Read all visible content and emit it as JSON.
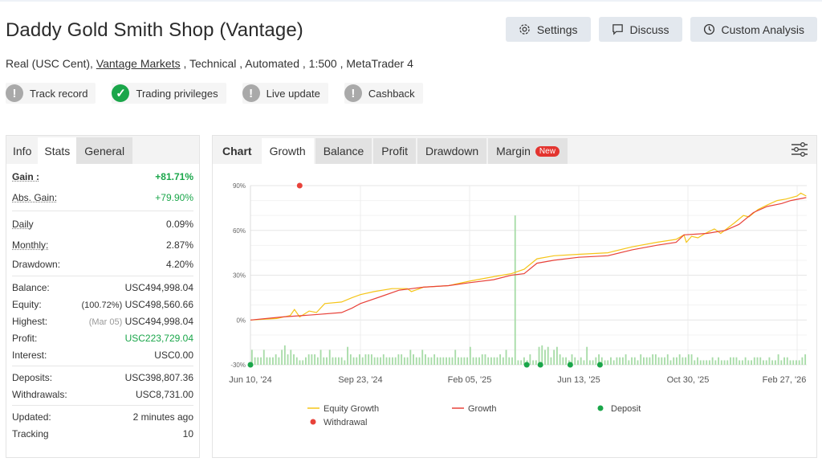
{
  "header": {
    "title": "Daddy Gold Smith Shop (Vantage)",
    "account_type": "Real (USC Cent),",
    "broker": "Vantage Markets",
    "details": " , Technical , Automated , 1:500 , MetaTrader 4",
    "badges": [
      {
        "label": "Track record",
        "icon": "exclamation-icon",
        "status": "grey"
      },
      {
        "label": "Trading privileges",
        "icon": "check-icon",
        "status": "green"
      },
      {
        "label": "Live update",
        "icon": "exclamation-icon",
        "status": "grey"
      },
      {
        "label": "Cashback",
        "icon": "exclamation-icon",
        "status": "grey"
      }
    ],
    "buttons": [
      {
        "label": "Settings",
        "icon": "gear-icon"
      },
      {
        "label": "Discuss",
        "icon": "chat-icon"
      },
      {
        "label": "Custom Analysis",
        "icon": "clock-icon"
      }
    ]
  },
  "stats": {
    "tabs": [
      "Info",
      "Stats",
      "General"
    ],
    "active_tab": "Stats",
    "gain": {
      "label": "Gain :",
      "value": "+81.71%"
    },
    "abs_gain": {
      "label": "Abs. Gain:",
      "value": "+79.90%"
    },
    "daily": {
      "label": "Daily",
      "value": "0.09%"
    },
    "monthly": {
      "label": "Monthly:",
      "value": "2.87%"
    },
    "drawdown": {
      "label": "Drawdown:",
      "value": "4.20%"
    },
    "balance": {
      "label": "Balance:",
      "value": "USC494,998.04"
    },
    "equity": {
      "label": "Equity:",
      "note": "(100.72%)",
      "value": "USC498,560.66"
    },
    "highest": {
      "label": "Highest:",
      "note": "(Mar 05)",
      "value": "USC494,998.04"
    },
    "profit": {
      "label": "Profit:",
      "value": "USC223,729.04"
    },
    "interest": {
      "label": "Interest:",
      "value": "USC0.00"
    },
    "deposits": {
      "label": "Deposits:",
      "value": "USC398,807.36"
    },
    "withdrawals": {
      "label": "Withdrawals:",
      "value": "USC8,731.00"
    },
    "updated": {
      "label": "Updated:",
      "value": "2 minutes ago"
    },
    "tracking": {
      "label": "Tracking",
      "value": "10"
    }
  },
  "chart_tabs": {
    "items": [
      "Chart",
      "Growth",
      "Balance",
      "Profit",
      "Drawdown",
      "Margin"
    ],
    "active": "Growth",
    "new_badge": "New"
  },
  "chart_data": {
    "type": "line",
    "ylim": [
      -30,
      90
    ],
    "yticks": [
      "90%",
      "60%",
      "30%",
      "0%",
      "-30%"
    ],
    "ytick_values": [
      90,
      60,
      30,
      0,
      -30
    ],
    "xticks": [
      "Jun 10, '24",
      "Sep 23, '24",
      "Feb 05, '25",
      "Jun 13, '25",
      "Oct 30, '25",
      "Feb 27, '26"
    ],
    "xtick_dates": [
      "2024-06-10",
      "2024-09-23",
      "2025-02-05",
      "2025-06-13",
      "2025-10-30",
      "2026-02-27"
    ],
    "grid": true,
    "legend_position": "bottom",
    "colors": {
      "equity": "#f5c518",
      "growth": "#e8423a",
      "deposit": "#1aa64a",
      "withdrawal": "#e8423a",
      "bars": "#a8dca8"
    },
    "series": [
      {
        "name": "Equity Growth",
        "points": [
          [
            "2024-06-10",
            0
          ],
          [
            "2024-07-05",
            1
          ],
          [
            "2024-07-18",
            3
          ],
          [
            "2024-07-22",
            7
          ],
          [
            "2024-07-27",
            2
          ],
          [
            "2024-08-05",
            6
          ],
          [
            "2024-08-12",
            5
          ],
          [
            "2024-08-20",
            11
          ],
          [
            "2024-09-05",
            12
          ],
          [
            "2024-09-15",
            15
          ],
          [
            "2024-09-23",
            17
          ],
          [
            "2024-10-10",
            19
          ],
          [
            "2024-11-01",
            21
          ],
          [
            "2024-11-20",
            21
          ],
          [
            "2024-11-25",
            19
          ],
          [
            "2024-12-10",
            22
          ],
          [
            "2025-01-10",
            23
          ],
          [
            "2025-02-05",
            26
          ],
          [
            "2025-03-05",
            29
          ],
          [
            "2025-03-26",
            31
          ],
          [
            "2025-04-10",
            34
          ],
          [
            "2025-04-25",
            41
          ],
          [
            "2025-05-15",
            43
          ],
          [
            "2025-06-13",
            44
          ],
          [
            "2025-07-20",
            45
          ],
          [
            "2025-08-20",
            49
          ],
          [
            "2025-09-20",
            52
          ],
          [
            "2025-10-15",
            54
          ],
          [
            "2025-10-25",
            57
          ],
          [
            "2025-10-28",
            52
          ],
          [
            "2025-11-03",
            56
          ],
          [
            "2025-11-10",
            55
          ],
          [
            "2025-11-18",
            58
          ],
          [
            "2025-11-28",
            61
          ],
          [
            "2025-12-05",
            58
          ],
          [
            "2025-12-20",
            65
          ],
          [
            "2025-12-30",
            70
          ],
          [
            "2026-01-05",
            69
          ],
          [
            "2026-01-15",
            74
          ],
          [
            "2026-01-25",
            77
          ],
          [
            "2026-02-05",
            80
          ],
          [
            "2026-02-15",
            81
          ],
          [
            "2026-02-27",
            83
          ],
          [
            "2026-03-03",
            85
          ],
          [
            "2026-03-09",
            83
          ]
        ]
      },
      {
        "name": "Growth",
        "points": [
          [
            "2024-06-10",
            0
          ],
          [
            "2024-07-10",
            2
          ],
          [
            "2024-08-10",
            3.5
          ],
          [
            "2024-09-05",
            5
          ],
          [
            "2024-09-15",
            8
          ],
          [
            "2024-09-23",
            11
          ],
          [
            "2024-10-20",
            16
          ],
          [
            "2024-11-10",
            20
          ],
          [
            "2024-12-10",
            22
          ],
          [
            "2025-01-10",
            23
          ],
          [
            "2025-02-05",
            25
          ],
          [
            "2025-03-05",
            27
          ],
          [
            "2025-03-26",
            30
          ],
          [
            "2025-04-10",
            31
          ],
          [
            "2025-04-25",
            38
          ],
          [
            "2025-05-15",
            40
          ],
          [
            "2025-06-13",
            42
          ],
          [
            "2025-07-20",
            43
          ],
          [
            "2025-08-20",
            47
          ],
          [
            "2025-09-20",
            50
          ],
          [
            "2025-10-15",
            52
          ],
          [
            "2025-10-25",
            57
          ],
          [
            "2025-11-20",
            58
          ],
          [
            "2025-12-10",
            60
          ],
          [
            "2025-12-25",
            64
          ],
          [
            "2026-01-10",
            72
          ],
          [
            "2026-01-25",
            76
          ],
          [
            "2026-02-10",
            78
          ],
          [
            "2026-02-20",
            80
          ],
          [
            "2026-03-09",
            82
          ]
        ]
      }
    ],
    "deposits": [
      [
        "2024-06-10",
        -30
      ],
      [
        "2025-04-13",
        -30
      ],
      [
        "2025-04-29",
        -30
      ],
      [
        "2025-06-03",
        -30
      ],
      [
        "2025-07-10",
        -30
      ]
    ],
    "withdrawals": [
      [
        "2024-07-27",
        90
      ]
    ],
    "bars": [
      10,
      5,
      5,
      5,
      10,
      5,
      5,
      5,
      7,
      5,
      10,
      13,
      7,
      10,
      7,
      5,
      3,
      3,
      5,
      7,
      7,
      7,
      5,
      10,
      5,
      5,
      10,
      5,
      5,
      5,
      5,
      3,
      12,
      7,
      5,
      5,
      7,
      5,
      7,
      7,
      7,
      5,
      5,
      5,
      7,
      5,
      5,
      5,
      5,
      7,
      7,
      5,
      5,
      10,
      7,
      5,
      5,
      10,
      7,
      5,
      5,
      7,
      5,
      5,
      5,
      5,
      5,
      5,
      10,
      5,
      5,
      5,
      5,
      12,
      5,
      5,
      5,
      7,
      7,
      5,
      5,
      5,
      5,
      7,
      5,
      10,
      5,
      5,
      100,
      3,
      3,
      5,
      3,
      7,
      3,
      3,
      12,
      13,
      10,
      12,
      5,
      10,
      12,
      7,
      5,
      5,
      3,
      7,
      5,
      3,
      5,
      3,
      12,
      3,
      3,
      5,
      7,
      5,
      3,
      3,
      5,
      3,
      5,
      5,
      5,
      7,
      3,
      5,
      5,
      3,
      7,
      5,
      5,
      5,
      7,
      7,
      5,
      5,
      5,
      7,
      3,
      5,
      5,
      7,
      5,
      5,
      7,
      7,
      3,
      5,
      3,
      3,
      3,
      3,
      5,
      3,
      5,
      3,
      3,
      3,
      5,
      5,
      5,
      3,
      3,
      5,
      3,
      3,
      5,
      5,
      5,
      3,
      3,
      5,
      3,
      3,
      7,
      3,
      5,
      5,
      3,
      3,
      3,
      3,
      5,
      7
    ],
    "legend": [
      "Equity Growth",
      "Growth",
      "Deposit",
      "Withdrawal"
    ]
  }
}
